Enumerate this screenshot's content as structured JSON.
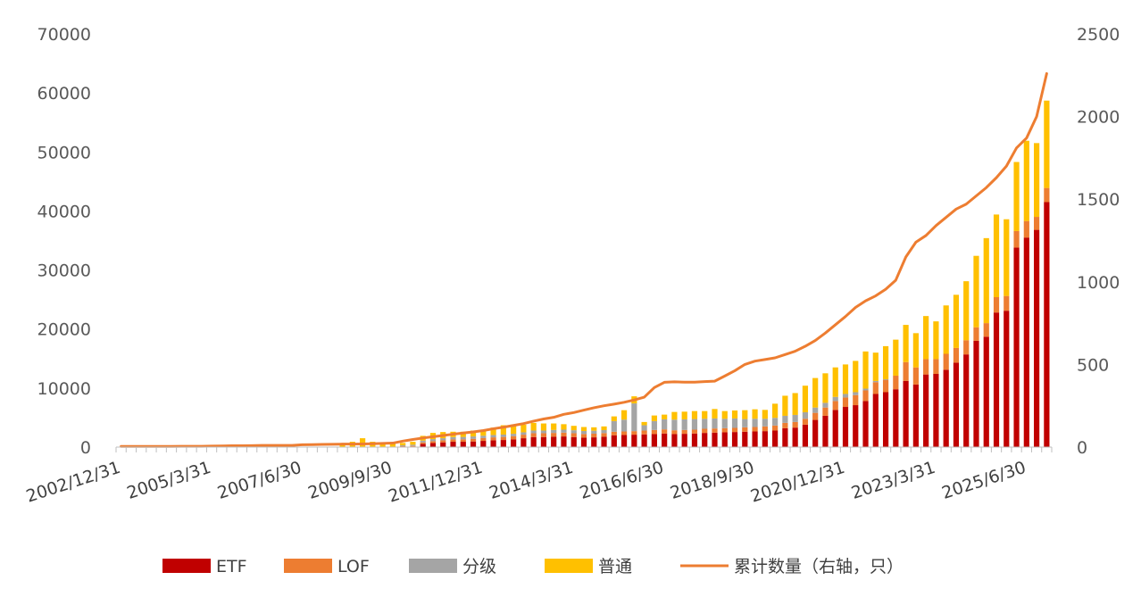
{
  "chart_data": {
    "type": "bar",
    "stacked": true,
    "title": "",
    "xlabel": "",
    "ylabel": "",
    "ylim": [
      0,
      70000
    ],
    "y2lim": [
      0,
      2500
    ],
    "yticks": [
      "0",
      "10000",
      "20000",
      "30000",
      "40000",
      "50000",
      "60000",
      "70000"
    ],
    "y2ticks": [
      "0",
      "500",
      "1000",
      "1500",
      "2000",
      "2500"
    ],
    "xtick_labels": [
      "2002/12/31",
      "2005/3/31",
      "2007/6/30",
      "2009/9/30",
      "2011/12/31",
      "2014/3/31",
      "2016/6/30",
      "2018/9/30",
      "2020/12/31",
      "2023/3/31",
      "2025/6/30"
    ],
    "xtick_positions": [
      0,
      9,
      18,
      27,
      36,
      45,
      54,
      63,
      72,
      81,
      90
    ],
    "legend_position": "bottom",
    "grid": false,
    "series": [
      {
        "name": "ETF",
        "color": "#C00000",
        "kind": "bar",
        "axis": "left",
        "values": [
          0,
          0,
          0,
          0,
          0,
          0,
          0,
          0,
          0,
          0,
          0,
          0,
          0,
          0,
          0,
          0,
          0,
          0,
          0,
          0,
          0,
          0,
          0,
          0,
          0,
          0,
          0,
          0,
          50,
          80,
          550,
          700,
          800,
          900,
          900,
          950,
          1050,
          1150,
          1200,
          1300,
          1500,
          1700,
          1700,
          1750,
          1800,
          1700,
          1600,
          1650,
          1750,
          2000,
          2050,
          2100,
          2150,
          2200,
          2300,
          2200,
          2250,
          2300,
          2400,
          2450,
          2500,
          2550,
          2600,
          2650,
          2700,
          2800,
          3200,
          3300,
          3800,
          4600,
          5300,
          6300,
          6800,
          7100,
          7800,
          9000,
          9300,
          9800,
          11200,
          10600,
          12300,
          12400,
          13100,
          14300,
          15700,
          18000,
          18700,
          22800,
          23100,
          33800,
          35500,
          36800,
          41500
        ]
      },
      {
        "name": "LOF",
        "color": "#ED7D31",
        "kind": "bar",
        "axis": "left",
        "values": [
          0,
          0,
          0,
          0,
          0,
          0,
          0,
          0,
          0,
          0,
          0,
          0,
          0,
          0,
          0,
          0,
          0,
          0,
          0,
          0,
          0,
          0,
          0,
          0,
          0,
          0,
          0,
          0,
          100,
          120,
          250,
          300,
          350,
          400,
          420,
          450,
          480,
          500,
          520,
          550,
          600,
          650,
          650,
          650,
          650,
          650,
          620,
          620,
          620,
          600,
          600,
          600,
          650,
          700,
          700,
          650,
          650,
          650,
          700,
          700,
          700,
          700,
          750,
          750,
          800,
          850,
          900,
          950,
          1000,
          1200,
          1400,
          1500,
          1600,
          1700,
          1800,
          2000,
          2100,
          2300,
          3200,
          2900,
          2600,
          2500,
          2700,
          2500,
          2400,
          2300,
          2300,
          2600,
          2500,
          2800,
          2800,
          2200,
          2400
        ]
      },
      {
        "name": "分级",
        "color": "#A5A5A5",
        "kind": "bar",
        "axis": "left",
        "values": [
          0,
          0,
          0,
          0,
          0,
          0,
          0,
          0,
          0,
          0,
          0,
          0,
          0,
          0,
          0,
          0,
          0,
          0,
          0,
          0,
          0,
          0,
          0,
          0,
          0,
          0,
          0,
          0,
          150,
          200,
          300,
          350,
          350,
          400,
          400,
          400,
          400,
          400,
          400,
          400,
          400,
          450,
          450,
          500,
          500,
          500,
          500,
          500,
          500,
          1800,
          2000,
          4700,
          900,
          1500,
          1700,
          1800,
          1800,
          1800,
          1700,
          1700,
          1600,
          1600,
          1400,
          1400,
          1300,
          1300,
          1200,
          1200,
          1100,
          900,
          800,
          700,
          600,
          500,
          300,
          200,
          100,
          0,
          0,
          0,
          0,
          0,
          0,
          0,
          0,
          0,
          0,
          0,
          0,
          0,
          0,
          0,
          0
        ]
      },
      {
        "name": "普通",
        "color": "#FFC000",
        "kind": "bar",
        "axis": "left",
        "values": [
          0,
          0,
          0,
          0,
          0,
          0,
          0,
          0,
          0,
          0,
          0,
          0,
          0,
          0,
          0,
          0,
          0,
          0,
          0,
          0,
          0,
          0,
          500,
          900,
          1500,
          900,
          800,
          700,
          400,
          500,
          800,
          1050,
          1050,
          900,
          880,
          1000,
          970,
          1250,
          1580,
          1550,
          1300,
          1300,
          1200,
          1100,
          930,
          750,
          680,
          580,
          630,
          800,
          1600,
          1200,
          550,
          950,
          800,
          1300,
          1300,
          1350,
          1300,
          1600,
          1300,
          1350,
          1500,
          1600,
          1500,
          2400,
          3400,
          3700,
          4500,
          5000,
          5000,
          5000,
          5000,
          5300,
          6300,
          4800,
          5600,
          6100,
          6300,
          5800,
          7300,
          6400,
          8200,
          9000,
          10000,
          12100,
          14400,
          14000,
          13000,
          11700,
          13600,
          12500,
          14800
        ]
      },
      {
        "name": "累计数量（右轴，只）",
        "color": "#ED7D31",
        "kind": "line",
        "axis": "right",
        "values": [
          4,
          4,
          4,
          4,
          4,
          4,
          5,
          5,
          5,
          6,
          7,
          8,
          8,
          9,
          10,
          10,
          10,
          10,
          14,
          15,
          16,
          17,
          18,
          18,
          19,
          20,
          22,
          24,
          36,
          46,
          55,
          63,
          70,
          78,
          85,
          92,
          100,
          111,
          120,
          131,
          142,
          157,
          170,
          180,
          198,
          209,
          224,
          238,
          250,
          260,
          271,
          285,
          302,
          360,
          392,
          395,
          393,
          393,
          396,
          399,
          430,
          462,
          500,
          520,
          530,
          540,
          560,
          580,
          610,
          645,
          690,
          740,
          790,
          845,
          885,
          915,
          955,
          1010,
          1150,
          1240,
          1280,
          1340,
          1390,
          1440,
          1470,
          1520,
          1570,
          1630,
          1700,
          1810,
          1870,
          2000,
          2260
        ]
      }
    ]
  }
}
